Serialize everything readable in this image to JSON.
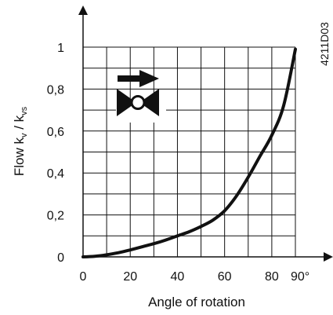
{
  "chart_data": {
    "type": "line",
    "xlabel": "Angle of rotation",
    "ylabel": {
      "main": "Flow k",
      "sub1": "v",
      "sep": " / k",
      "sub2": "vs"
    },
    "code": "4211D03",
    "x_ticks": [
      {
        "value": 0,
        "label": "0"
      },
      {
        "value": 20,
        "label": "20"
      },
      {
        "value": 40,
        "label": "40"
      },
      {
        "value": 60,
        "label": "60"
      },
      {
        "value": 80,
        "label": "80"
      },
      {
        "value": 90,
        "label": "90°"
      }
    ],
    "y_ticks": [
      {
        "value": 0,
        "label": "0"
      },
      {
        "value": 0.2,
        "label": "0,2"
      },
      {
        "value": 0.4,
        "label": "0,4"
      },
      {
        "value": 0.6,
        "label": "0,6"
      },
      {
        "value": 0.8,
        "label": "0,8"
      },
      {
        "value": 1,
        "label": "1"
      }
    ],
    "xlim": [
      0,
      90
    ],
    "ylim": [
      0,
      1
    ],
    "grid": true,
    "grid_x_step": 10,
    "grid_y_step": 0.1,
    "series": [
      {
        "color": "#111111",
        "x": [
          0,
          5,
          10,
          15,
          20,
          25,
          30,
          35,
          40,
          45,
          50,
          55,
          60,
          65,
          70,
          75,
          80,
          85,
          90
        ],
        "y": [
          0,
          0.003,
          0.01,
          0.02,
          0.033,
          0.048,
          0.063,
          0.08,
          0.1,
          0.12,
          0.145,
          0.175,
          0.22,
          0.29,
          0.38,
          0.48,
          0.58,
          0.72,
          0.99
        ]
      }
    ],
    "valve_icon": "valve-flow-direction-icon"
  }
}
